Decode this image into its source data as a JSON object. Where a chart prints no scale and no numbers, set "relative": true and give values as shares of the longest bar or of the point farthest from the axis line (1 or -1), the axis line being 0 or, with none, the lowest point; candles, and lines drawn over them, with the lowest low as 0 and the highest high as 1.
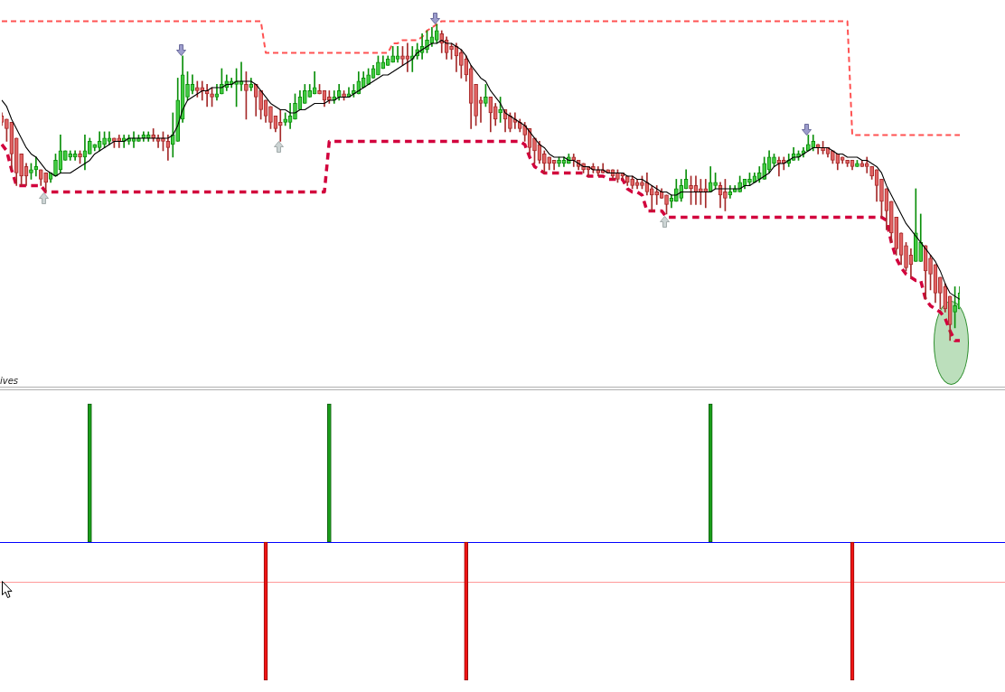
{
  "chart_data": [
    {
      "type": "candlestick",
      "relative": true,
      "tick_labels": false,
      "categories": [
        null,
        null,
        null,
        null,
        null,
        null,
        null,
        null,
        null,
        null,
        null,
        null,
        null,
        null,
        null,
        null,
        null,
        null,
        null,
        null,
        null,
        null,
        null,
        null,
        null,
        null,
        null,
        null,
        null,
        null,
        null,
        null,
        null,
        null,
        null,
        null,
        null,
        null,
        null,
        null,
        null,
        null,
        null,
        null,
        null,
        null,
        null,
        null,
        null,
        null,
        null,
        null,
        null,
        null,
        null,
        null,
        null,
        null,
        null,
        null,
        null,
        null,
        null,
        null,
        null,
        null,
        null,
        null,
        null,
        null,
        null,
        null,
        null,
        null,
        null,
        null,
        null,
        null,
        null,
        null,
        null,
        null,
        null,
        null,
        null,
        null,
        null,
        null,
        null,
        null,
        null,
        null,
        null,
        null,
        null,
        null,
        null,
        null,
        null,
        null,
        null,
        null,
        null,
        null,
        null,
        null,
        null,
        null,
        null,
        null,
        null,
        null,
        null,
        null,
        null,
        null,
        null,
        null,
        null,
        null,
        null,
        null,
        null,
        null,
        null,
        null,
        null,
        null,
        null,
        null,
        null,
        null,
        null,
        null,
        null,
        null,
        null,
        null,
        null,
        null,
        null,
        null,
        null,
        null,
        null,
        null,
        null,
        null,
        null,
        null,
        null,
        null,
        null,
        null,
        null,
        null,
        null,
        null,
        null,
        null,
        null,
        null,
        null,
        null,
        null,
        null,
        null,
        null,
        null,
        null,
        null,
        null,
        null,
        null,
        null,
        null,
        null,
        null,
        null,
        null,
        null,
        null,
        null,
        null,
        null,
        null,
        null,
        null,
        null,
        null,
        null,
        null,
        null,
        null,
        null,
        null,
        null
      ],
      "ohlc": [
        [
          0.71,
          0.72,
          0.68,
          0.69
        ],
        [
          0.7,
          0.7,
          0.63,
          0.67
        ],
        [
          0.69,
          0.69,
          0.54,
          0.59
        ],
        [
          0.64,
          0.64,
          0.49,
          0.53
        ],
        [
          0.59,
          0.59,
          0.49,
          0.52
        ],
        [
          0.55,
          0.56,
          0.49,
          0.52
        ],
        [
          0.53,
          0.56,
          0.51,
          0.54
        ],
        [
          0.54,
          0.58,
          0.52,
          0.55
        ],
        [
          0.54,
          0.54,
          0.49,
          0.51
        ],
        [
          0.53,
          0.53,
          0.47,
          0.5
        ],
        [
          0.51,
          0.53,
          0.5,
          0.53
        ],
        [
          0.52,
          0.59,
          0.52,
          0.57
        ],
        [
          0.54,
          0.65,
          0.53,
          0.6
        ],
        [
          0.57,
          0.6,
          0.57,
          0.6
        ],
        [
          0.58,
          0.6,
          0.57,
          0.59
        ],
        [
          0.58,
          0.6,
          0.57,
          0.59
        ],
        [
          0.59,
          0.6,
          0.56,
          0.58
        ],
        [
          0.58,
          0.65,
          0.54,
          0.6
        ],
        [
          0.59,
          0.64,
          0.59,
          0.63
        ],
        [
          0.61,
          0.62,
          0.6,
          0.62
        ],
        [
          0.61,
          0.66,
          0.6,
          0.63
        ],
        [
          0.62,
          0.66,
          0.61,
          0.64
        ],
        [
          0.63,
          0.66,
          0.62,
          0.64
        ],
        [
          0.64,
          0.64,
          0.61,
          0.63
        ],
        [
          0.64,
          0.65,
          0.61,
          0.63
        ],
        [
          0.63,
          0.65,
          0.61,
          0.64
        ],
        [
          0.63,
          0.65,
          0.62,
          0.64
        ],
        [
          0.63,
          0.66,
          0.61,
          0.64
        ],
        [
          0.63,
          0.65,
          0.63,
          0.64
        ],
        [
          0.64,
          0.66,
          0.63,
          0.65
        ],
        [
          0.64,
          0.66,
          0.63,
          0.65
        ],
        [
          0.65,
          0.67,
          0.63,
          0.64
        ],
        [
          0.64,
          0.65,
          0.61,
          0.63
        ],
        [
          0.64,
          0.66,
          0.6,
          0.63
        ],
        [
          0.63,
          0.65,
          0.57,
          0.61
        ],
        [
          0.62,
          0.72,
          0.58,
          0.65
        ],
        [
          0.63,
          0.83,
          0.63,
          0.76
        ],
        [
          0.7,
          0.9,
          0.69,
          0.84
        ],
        [
          0.77,
          0.85,
          0.76,
          0.81
        ],
        [
          0.79,
          0.84,
          0.78,
          0.81
        ],
        [
          0.8,
          0.82,
          0.77,
          0.79
        ],
        [
          0.8,
          0.82,
          0.76,
          0.79
        ],
        [
          0.79,
          0.81,
          0.74,
          0.78
        ],
        [
          0.78,
          0.8,
          0.74,
          0.77
        ],
        [
          0.77,
          0.81,
          0.76,
          0.78
        ],
        [
          0.78,
          0.86,
          0.78,
          0.81
        ],
        [
          0.8,
          0.84,
          0.79,
          0.82
        ],
        [
          0.81,
          0.83,
          0.8,
          0.82
        ],
        [
          0.81,
          0.86,
          0.74,
          0.82
        ],
        [
          0.81,
          0.88,
          0.79,
          0.82
        ],
        [
          0.81,
          0.85,
          0.7,
          0.79
        ],
        [
          0.8,
          0.83,
          0.79,
          0.81
        ],
        [
          0.81,
          0.81,
          0.71,
          0.77
        ],
        [
          0.79,
          0.79,
          0.7,
          0.73
        ],
        [
          0.76,
          0.76,
          0.69,
          0.71
        ],
        [
          0.74,
          0.74,
          0.67,
          0.69
        ],
        [
          0.71,
          0.71,
          0.66,
          0.67
        ],
        [
          0.69,
          0.73,
          0.63,
          0.68
        ],
        [
          0.69,
          0.72,
          0.68,
          0.7
        ],
        [
          0.69,
          0.75,
          0.67,
          0.71
        ],
        [
          0.7,
          0.78,
          0.7,
          0.75
        ],
        [
          0.73,
          0.79,
          0.73,
          0.77
        ],
        [
          0.75,
          0.81,
          0.75,
          0.79
        ],
        [
          0.77,
          0.81,
          0.77,
          0.79
        ],
        [
          0.78,
          0.85,
          0.78,
          0.8
        ],
        [
          0.79,
          0.81,
          0.78,
          0.78
        ],
        [
          0.79,
          0.79,
          0.74,
          0.76
        ],
        [
          0.77,
          0.79,
          0.75,
          0.76
        ],
        [
          0.76,
          0.79,
          0.75,
          0.77
        ],
        [
          0.77,
          0.81,
          0.76,
          0.79
        ],
        [
          0.78,
          0.79,
          0.76,
          0.77
        ],
        [
          0.77,
          0.8,
          0.77,
          0.78
        ],
        [
          0.78,
          0.81,
          0.77,
          0.79
        ],
        [
          0.78,
          0.85,
          0.78,
          0.82
        ],
        [
          0.8,
          0.85,
          0.8,
          0.83
        ],
        [
          0.81,
          0.86,
          0.81,
          0.84
        ],
        [
          0.83,
          0.87,
          0.83,
          0.86
        ],
        [
          0.84,
          0.9,
          0.84,
          0.88
        ],
        [
          0.86,
          0.9,
          0.86,
          0.88
        ],
        [
          0.87,
          0.9,
          0.87,
          0.89
        ],
        [
          0.88,
          0.93,
          0.88,
          0.9
        ],
        [
          0.89,
          0.93,
          0.88,
          0.9
        ],
        [
          0.9,
          0.93,
          0.87,
          0.89
        ],
        [
          0.9,
          0.94,
          0.85,
          0.89
        ],
        [
          0.89,
          0.93,
          0.85,
          0.9
        ],
        [
          0.9,
          0.94,
          0.89,
          0.92
        ],
        [
          0.91,
          0.97,
          0.89,
          0.93
        ],
        [
          0.92,
          0.98,
          0.91,
          0.95
        ],
        [
          0.94,
          0.99,
          0.93,
          0.96
        ],
        [
          0.95,
          1.0,
          0.94,
          0.98
        ],
        [
          0.97,
          0.98,
          0.91,
          0.94
        ],
        [
          0.95,
          0.96,
          0.89,
          0.91
        ],
        [
          0.93,
          0.94,
          0.89,
          0.92
        ],
        [
          0.93,
          0.94,
          0.85,
          0.9
        ],
        [
          0.91,
          0.92,
          0.83,
          0.87
        ],
        [
          0.89,
          0.9,
          0.82,
          0.84
        ],
        [
          0.86,
          0.87,
          0.67,
          0.75
        ],
        [
          0.81,
          0.81,
          0.68,
          0.71
        ],
        [
          0.76,
          0.77,
          0.69,
          0.75
        ],
        [
          0.75,
          0.81,
          0.74,
          0.77
        ],
        [
          0.77,
          0.77,
          0.66,
          0.72
        ],
        [
          0.74,
          0.75,
          0.68,
          0.7
        ],
        [
          0.72,
          0.77,
          0.69,
          0.73
        ],
        [
          0.73,
          0.73,
          0.66,
          0.7
        ],
        [
          0.71,
          0.72,
          0.66,
          0.67
        ],
        [
          0.7,
          0.72,
          0.67,
          0.69
        ],
        [
          0.69,
          0.7,
          0.66,
          0.67
        ],
        [
          0.68,
          0.69,
          0.63,
          0.65
        ],
        [
          0.67,
          0.67,
          0.59,
          0.61
        ],
        [
          0.64,
          0.64,
          0.56,
          0.6
        ],
        [
          0.62,
          0.63,
          0.56,
          0.57
        ],
        [
          0.59,
          0.6,
          0.53,
          0.56
        ],
        [
          0.58,
          0.58,
          0.54,
          0.56
        ],
        [
          0.57,
          0.57,
          0.54,
          0.56
        ],
        [
          0.56,
          0.58,
          0.55,
          0.57
        ],
        [
          0.56,
          0.58,
          0.55,
          0.57
        ],
        [
          0.56,
          0.59,
          0.56,
          0.58
        ],
        [
          0.58,
          0.59,
          0.55,
          0.57
        ],
        [
          0.57,
          0.57,
          0.54,
          0.55
        ],
        [
          0.56,
          0.56,
          0.53,
          0.54
        ],
        [
          0.55,
          0.55,
          0.52,
          0.54
        ],
        [
          0.55,
          0.56,
          0.53,
          0.54
        ],
        [
          0.54,
          0.55,
          0.52,
          0.53
        ],
        [
          0.54,
          0.56,
          0.53,
          0.53
        ],
        [
          0.54,
          0.54,
          0.53,
          0.53
        ],
        [
          0.54,
          0.54,
          0.51,
          0.52
        ],
        [
          0.53,
          0.54,
          0.5,
          0.51
        ],
        [
          0.53,
          0.53,
          0.51,
          0.52
        ],
        [
          0.52,
          0.52,
          0.49,
          0.5
        ],
        [
          0.51,
          0.52,
          0.48,
          0.49
        ],
        [
          0.5,
          0.51,
          0.48,
          0.49
        ],
        [
          0.5,
          0.52,
          0.48,
          0.49
        ],
        [
          0.5,
          0.53,
          0.46,
          0.47
        ],
        [
          0.48,
          0.49,
          0.41,
          0.46
        ],
        [
          0.47,
          0.49,
          0.43,
          0.46
        ],
        [
          0.47,
          0.48,
          0.45,
          0.45
        ],
        [
          0.46,
          0.46,
          0.4,
          0.43
        ],
        [
          0.44,
          0.46,
          0.42,
          0.45
        ],
        [
          0.44,
          0.51,
          0.44,
          0.48
        ],
        [
          0.45,
          0.51,
          0.44,
          0.49
        ],
        [
          0.48,
          0.54,
          0.48,
          0.51
        ],
        [
          0.49,
          0.52,
          0.43,
          0.48
        ],
        [
          0.49,
          0.52,
          0.43,
          0.47
        ],
        [
          0.48,
          0.51,
          0.43,
          0.47
        ],
        [
          0.48,
          0.51,
          0.42,
          0.47
        ],
        [
          0.47,
          0.55,
          0.47,
          0.5
        ],
        [
          0.49,
          0.53,
          0.48,
          0.5
        ],
        [
          0.49,
          0.5,
          0.42,
          0.46
        ],
        [
          0.47,
          0.51,
          0.41,
          0.45
        ],
        [
          0.46,
          0.49,
          0.45,
          0.47
        ],
        [
          0.47,
          0.49,
          0.47,
          0.48
        ],
        [
          0.47,
          0.52,
          0.47,
          0.5
        ],
        [
          0.49,
          0.51,
          0.48,
          0.51
        ],
        [
          0.5,
          0.53,
          0.49,
          0.51
        ],
        [
          0.5,
          0.53,
          0.5,
          0.52
        ],
        [
          0.51,
          0.55,
          0.5,
          0.53
        ],
        [
          0.51,
          0.58,
          0.51,
          0.56
        ],
        [
          0.54,
          0.6,
          0.53,
          0.58
        ],
        [
          0.56,
          0.59,
          0.55,
          0.58
        ],
        [
          0.57,
          0.58,
          0.52,
          0.56
        ],
        [
          0.57,
          0.58,
          0.54,
          0.56
        ],
        [
          0.56,
          0.59,
          0.55,
          0.57
        ],
        [
          0.57,
          0.61,
          0.57,
          0.59
        ],
        [
          0.58,
          0.6,
          0.57,
          0.59
        ],
        [
          0.59,
          0.61,
          0.58,
          0.6
        ],
        [
          0.6,
          0.65,
          0.6,
          0.62
        ],
        [
          0.61,
          0.65,
          0.6,
          0.63
        ],
        [
          0.62,
          0.62,
          0.59,
          0.61
        ],
        [
          0.61,
          0.63,
          0.59,
          0.6
        ],
        [
          0.61,
          0.61,
          0.58,
          0.59
        ],
        [
          0.6,
          0.6,
          0.56,
          0.57
        ],
        [
          0.59,
          0.59,
          0.54,
          0.56
        ],
        [
          0.58,
          0.58,
          0.56,
          0.57
        ],
        [
          0.57,
          0.57,
          0.55,
          0.56
        ],
        [
          0.57,
          0.57,
          0.54,
          0.55
        ],
        [
          0.55,
          0.57,
          0.55,
          0.56
        ],
        [
          0.56,
          0.57,
          0.55,
          0.55
        ],
        [
          0.56,
          0.58,
          0.53,
          0.55
        ],
        [
          0.55,
          0.55,
          0.51,
          0.52
        ],
        [
          0.54,
          0.54,
          0.44,
          0.49
        ],
        [
          0.51,
          0.51,
          0.39,
          0.44
        ],
        [
          0.48,
          0.48,
          0.35,
          0.41
        ],
        [
          0.44,
          0.44,
          0.31,
          0.34
        ],
        [
          0.39,
          0.39,
          0.27,
          0.29
        ],
        [
          0.34,
          0.34,
          0.24,
          0.27
        ],
        [
          0.3,
          0.31,
          0.22,
          0.23
        ],
        [
          0.27,
          0.29,
          0.2,
          0.24
        ],
        [
          0.25,
          0.48,
          0.25,
          0.34
        ],
        [
          0.25,
          0.4,
          0.25,
          0.31
        ],
        [
          0.3,
          0.3,
          0.13,
          0.22
        ],
        [
          0.26,
          0.27,
          0.16,
          0.21
        ],
        [
          0.24,
          0.24,
          0.12,
          0.15
        ],
        [
          0.2,
          0.2,
          0.1,
          0.15
        ],
        [
          0.17,
          0.18,
          0.09,
          0.1
        ],
        [
          0.14,
          0.14,
          0.0,
          0.05
        ],
        [
          0.09,
          0.17,
          0.04,
          0.11
        ],
        [
          0.1,
          0.17,
          0.1,
          0.15
        ]
      ],
      "series": [
        {
          "type": "line",
          "color": "#000000",
          "values": [
            0.76,
            0.74,
            0.7,
            0.67,
            0.64,
            0.61,
            0.59,
            0.58,
            0.56,
            0.54,
            0.53,
            0.52,
            0.53,
            0.53,
            0.53,
            0.54,
            0.55,
            0.56,
            0.57,
            0.59,
            0.6,
            0.61,
            0.62,
            0.63,
            0.63,
            0.63,
            0.64,
            0.64,
            0.64,
            0.64,
            0.64,
            0.64,
            0.64,
            0.64,
            0.64,
            0.65,
            0.68,
            0.73,
            0.76,
            0.77,
            0.78,
            0.79,
            0.79,
            0.8,
            0.8,
            0.8,
            0.81,
            0.81,
            0.82,
            0.82,
            0.82,
            0.82,
            0.81,
            0.79,
            0.77,
            0.75,
            0.74,
            0.73,
            0.73,
            0.72,
            0.72,
            0.73,
            0.73,
            0.74,
            0.75,
            0.75,
            0.75,
            0.76,
            0.76,
            0.77,
            0.77,
            0.77,
            0.78,
            0.79,
            0.8,
            0.81,
            0.82,
            0.83,
            0.84,
            0.84,
            0.85,
            0.86,
            0.87,
            0.88,
            0.89,
            0.91,
            0.92,
            0.93,
            0.94,
            0.94,
            0.95,
            0.94,
            0.94,
            0.93,
            0.92,
            0.9,
            0.87,
            0.85,
            0.83,
            0.82,
            0.79,
            0.77,
            0.75,
            0.72,
            0.71,
            0.7,
            0.69,
            0.68,
            0.66,
            0.64,
            0.62,
            0.61,
            0.59,
            0.58,
            0.58,
            0.58,
            0.57,
            0.57,
            0.56,
            0.55,
            0.55,
            0.54,
            0.54,
            0.54,
            0.53,
            0.53,
            0.53,
            0.53,
            0.52,
            0.52,
            0.51,
            0.51,
            0.5,
            0.49,
            0.48,
            0.47,
            0.47,
            0.46,
            0.46,
            0.47,
            0.47,
            0.47,
            0.47,
            0.47,
            0.47,
            0.47,
            0.48,
            0.48,
            0.48,
            0.48,
            0.48,
            0.48,
            0.49,
            0.49,
            0.5,
            0.51,
            0.52,
            0.53,
            0.55,
            0.56,
            0.56,
            0.57,
            0.58,
            0.58,
            0.59,
            0.6,
            0.61,
            0.61,
            0.61,
            0.61,
            0.6,
            0.59,
            0.59,
            0.58,
            0.58,
            0.58,
            0.57,
            0.57,
            0.56,
            0.55,
            0.53,
            0.49,
            0.46,
            0.43,
            0.4,
            0.37,
            0.35,
            0.33,
            0.31,
            0.29,
            0.27,
            0.25,
            0.22,
            0.18,
            0.15,
            0.14,
            0.13
          ]
        },
        {
          "type": "line",
          "color": "#ff5252",
          "line_style": "dashed",
          "values": [
            1.01,
            1.01,
            1.01,
            1.01,
            1.01,
            1.01,
            1.01,
            1.01,
            1.01,
            1.01,
            1.01,
            1.01,
            1.01,
            1.01,
            1.01,
            1.01,
            1.01,
            1.01,
            1.01,
            1.01,
            1.01,
            1.01,
            1.01,
            1.01,
            1.01,
            1.01,
            1.01,
            1.01,
            1.01,
            1.01,
            1.01,
            1.01,
            1.01,
            1.01,
            1.01,
            1.01,
            1.01,
            1.01,
            1.01,
            1.01,
            1.01,
            1.01,
            1.01,
            1.01,
            1.01,
            1.01,
            1.01,
            1.01,
            1.01,
            1.01,
            1.01,
            1.01,
            1.01,
            1.01,
            0.91,
            0.91,
            0.91,
            0.91,
            0.91,
            0.91,
            0.91,
            0.91,
            0.91,
            0.91,
            0.91,
            0.91,
            0.91,
            0.91,
            0.91,
            0.91,
            0.91,
            0.91,
            0.91,
            0.91,
            0.91,
            0.91,
            0.91,
            0.91,
            0.91,
            0.91,
            0.94,
            0.94,
            0.95,
            0.95,
            0.95,
            0.95,
            0.96,
            0.98,
            0.99,
            1.0,
            1.01,
            1.01,
            1.01,
            1.01,
            1.01,
            1.01,
            1.01,
            1.01,
            1.01,
            1.01,
            1.01,
            1.01,
            1.01,
            1.01,
            1.01,
            1.01,
            1.01,
            1.01,
            1.01,
            1.01,
            1.01,
            1.01,
            1.01,
            1.01,
            1.01,
            1.01,
            1.01,
            1.01,
            1.01,
            1.01,
            1.01,
            1.01,
            1.01,
            1.01,
            1.01,
            1.01,
            1.01,
            1.01,
            1.01,
            1.01,
            1.01,
            1.01,
            1.01,
            1.01,
            1.01,
            1.01,
            1.01,
            1.01,
            1.01,
            1.01,
            1.01,
            1.01,
            1.01,
            1.01,
            1.01,
            1.01,
            1.01,
            1.01,
            1.01,
            1.01,
            1.01,
            1.01,
            1.01,
            1.01,
            1.01,
            1.01,
            1.01,
            1.01,
            1.01,
            1.01,
            1.01,
            1.01,
            1.01,
            1.01,
            1.01,
            1.01,
            1.01,
            1.01,
            1.01,
            1.01,
            1.01,
            1.01,
            1.01,
            1.01,
            0.65,
            0.65,
            0.65,
            0.65,
            0.65,
            0.65,
            0.65,
            0.65,
            0.65,
            0.65,
            0.65,
            0.65,
            0.65,
            0.65,
            0.65,
            0.65,
            0.65,
            0.65,
            0.65,
            0.65,
            0.65,
            0.65,
            0.65
          ]
        },
        {
          "type": "line",
          "color": "#d2003c",
          "line_style": "dashed",
          "values": [
            0.62,
            0.6,
            0.54,
            0.49,
            0.49,
            0.49,
            0.49,
            0.49,
            0.49,
            0.47,
            0.47,
            0.47,
            0.47,
            0.47,
            0.47,
            0.47,
            0.47,
            0.47,
            0.47,
            0.47,
            0.47,
            0.47,
            0.47,
            0.47,
            0.47,
            0.47,
            0.47,
            0.47,
            0.47,
            0.47,
            0.47,
            0.47,
            0.47,
            0.47,
            0.47,
            0.47,
            0.47,
            0.47,
            0.47,
            0.47,
            0.47,
            0.47,
            0.47,
            0.47,
            0.47,
            0.47,
            0.47,
            0.47,
            0.47,
            0.47,
            0.47,
            0.47,
            0.47,
            0.47,
            0.47,
            0.47,
            0.47,
            0.47,
            0.47,
            0.47,
            0.47,
            0.47,
            0.47,
            0.47,
            0.47,
            0.47,
            0.47,
            0.63,
            0.63,
            0.63,
            0.63,
            0.63,
            0.63,
            0.63,
            0.63,
            0.63,
            0.63,
            0.63,
            0.63,
            0.63,
            0.63,
            0.63,
            0.63,
            0.63,
            0.63,
            0.63,
            0.63,
            0.63,
            0.63,
            0.63,
            0.63,
            0.63,
            0.63,
            0.63,
            0.63,
            0.63,
            0.63,
            0.63,
            0.63,
            0.63,
            0.63,
            0.63,
            0.63,
            0.63,
            0.63,
            0.63,
            0.63,
            0.62,
            0.58,
            0.55,
            0.54,
            0.53,
            0.53,
            0.53,
            0.53,
            0.53,
            0.53,
            0.53,
            0.53,
            0.53,
            0.52,
            0.52,
            0.52,
            0.52,
            0.51,
            0.51,
            0.51,
            0.51,
            0.48,
            0.47,
            0.47,
            0.46,
            0.41,
            0.41,
            0.41,
            0.41,
            0.39,
            0.39,
            0.39,
            0.39,
            0.39,
            0.39,
            0.39,
            0.39,
            0.39,
            0.39,
            0.39,
            0.39,
            0.39,
            0.39,
            0.39,
            0.39,
            0.39,
            0.39,
            0.39,
            0.39,
            0.39,
            0.39,
            0.39,
            0.39,
            0.39,
            0.39,
            0.39,
            0.39,
            0.39,
            0.39,
            0.39,
            0.39,
            0.39,
            0.39,
            0.39,
            0.39,
            0.39,
            0.39,
            0.39,
            0.39,
            0.39,
            0.39,
            0.39,
            0.39,
            0.39,
            0.38,
            0.31,
            0.26,
            0.23,
            0.21,
            0.2,
            0.19,
            0.19,
            0.13,
            0.11,
            0.1,
            0.09,
            0.07,
            0.03,
            0.0,
            0.0
          ]
        }
      ]
    },
    {
      "type": "bar",
      "relative": true,
      "tick_labels": false,
      "title": "ives",
      "categories": [
        null,
        null,
        null,
        null,
        null,
        null,
        null,
        null,
        null,
        null,
        null,
        null,
        null,
        null,
        null,
        null,
        null,
        null,
        null,
        null,
        null,
        null,
        null,
        null,
        null,
        null,
        null,
        null,
        null,
        null,
        null,
        null,
        null,
        null,
        null,
        null,
        null,
        null,
        null,
        null,
        null,
        null,
        null,
        null,
        null,
        null,
        null,
        null,
        null,
        null,
        null,
        null,
        null,
        null,
        null,
        null,
        null,
        null,
        null,
        null,
        null,
        null,
        null,
        null,
        null,
        null,
        null,
        null,
        null,
        null,
        null,
        null,
        null,
        null,
        null,
        null,
        null,
        null,
        null,
        null,
        null,
        null,
        null,
        null,
        null,
        null,
        null,
        null,
        null,
        null,
        null,
        null,
        null,
        null,
        null,
        null,
        null,
        null,
        null,
        null,
        null,
        null,
        null,
        null,
        null,
        null,
        null,
        null,
        null,
        null,
        null,
        null,
        null,
        null,
        null,
        null,
        null,
        null,
        null,
        null,
        null,
        null,
        null,
        null,
        null,
        null,
        null,
        null,
        null,
        null,
        null,
        null,
        null,
        null,
        null,
        null,
        null,
        null,
        null,
        null,
        null,
        null,
        null,
        null,
        null,
        null,
        null,
        null,
        null,
        null,
        null,
        null,
        null,
        null,
        null,
        null,
        null,
        null,
        null,
        null,
        null,
        null,
        null,
        null,
        null,
        null,
        null,
        null,
        null,
        null,
        null,
        null,
        null,
        null,
        null,
        null,
        null,
        null,
        null,
        null,
        null,
        null,
        null,
        null,
        null,
        null,
        null,
        null,
        null,
        null,
        null,
        null,
        null,
        null,
        null,
        null,
        null
      ],
      "values": [
        null,
        null,
        null,
        null,
        null,
        null,
        null,
        null,
        null,
        null,
        null,
        null,
        null,
        null,
        null,
        null,
        null,
        null,
        1,
        null,
        null,
        null,
        null,
        null,
        null,
        null,
        null,
        null,
        null,
        null,
        null,
        null,
        null,
        null,
        null,
        null,
        null,
        null,
        null,
        null,
        null,
        null,
        null,
        null,
        null,
        null,
        null,
        null,
        null,
        null,
        null,
        null,
        null,
        null,
        -1,
        null,
        null,
        null,
        null,
        null,
        null,
        null,
        null,
        null,
        null,
        null,
        null,
        1,
        null,
        null,
        null,
        null,
        null,
        null,
        null,
        null,
        null,
        null,
        null,
        null,
        null,
        null,
        null,
        null,
        null,
        null,
        null,
        null,
        null,
        null,
        null,
        null,
        null,
        null,
        null,
        -1,
        null,
        null,
        null,
        null,
        null,
        null,
        null,
        null,
        null,
        null,
        null,
        null,
        null,
        null,
        null,
        null,
        null,
        null,
        null,
        null,
        null,
        null,
        null,
        null,
        null,
        null,
        null,
        null,
        null,
        null,
        null,
        null,
        null,
        null,
        null,
        null,
        null,
        null,
        null,
        null,
        null,
        null,
        null,
        null,
        null,
        null,
        null,
        null,
        null,
        1,
        null,
        null,
        null,
        null,
        null,
        null,
        null,
        null,
        null,
        null,
        null,
        null,
        null,
        null,
        null,
        null,
        null,
        null,
        null,
        null,
        null,
        null,
        null,
        null,
        null,
        null,
        null,
        null,
        -1,
        null,
        null,
        null,
        null,
        null,
        null,
        null,
        null,
        null,
        null,
        null,
        null,
        null,
        null,
        null,
        null,
        null,
        null,
        null,
        null,
        null,
        null
      ],
      "colors": [
        null,
        null,
        null,
        null,
        null,
        null,
        null,
        null,
        null,
        null,
        null,
        null,
        null,
        null,
        null,
        null,
        null,
        null,
        "#1a9e1a",
        null,
        null,
        null,
        null,
        null,
        null,
        null,
        null,
        null,
        null,
        null,
        null,
        null,
        null,
        null,
        null,
        null,
        null,
        null,
        null,
        null,
        null,
        null,
        null,
        null,
        null,
        null,
        null,
        null,
        null,
        null,
        null,
        null,
        null,
        null,
        "#f01414",
        null,
        null,
        null,
        null,
        null,
        null,
        null,
        null,
        null,
        null,
        null,
        null,
        "#1a9e1a",
        null,
        null,
        null,
        null,
        null,
        null,
        null,
        null,
        null,
        null,
        null,
        null,
        null,
        null,
        null,
        null,
        null,
        null,
        null,
        null,
        null,
        null,
        null,
        null,
        null,
        null,
        null,
        "#f01414",
        null,
        null,
        null,
        null,
        null,
        null,
        null,
        null,
        null,
        null,
        null,
        null,
        null,
        null,
        null,
        null,
        null,
        null,
        null,
        null,
        null,
        null,
        null,
        null,
        null,
        null,
        null,
        null,
        null,
        null,
        null,
        null,
        null,
        null,
        null,
        null,
        null,
        null,
        null,
        null,
        null,
        null,
        null,
        null,
        null,
        null,
        null,
        null,
        null,
        "#1a9e1a",
        null,
        null,
        null,
        null,
        null,
        null,
        null,
        null,
        null,
        null,
        null,
        null,
        null,
        null,
        null,
        null,
        null,
        null,
        null,
        null,
        null,
        null,
        null,
        null,
        null,
        null,
        null,
        null,
        "#f01414",
        null,
        null,
        null,
        null,
        null,
        null,
        null,
        null,
        null,
        null,
        null,
        null,
        null,
        null,
        null,
        null,
        null,
        null,
        null,
        null,
        null,
        null
      ],
      "ref_lines": [
        {
          "axis": "y",
          "value": 0,
          "color": "#0000ff"
        },
        {
          "axis": "y",
          "value": -0.29,
          "color": "#ff9999"
        }
      ]
    }
  ]
}
